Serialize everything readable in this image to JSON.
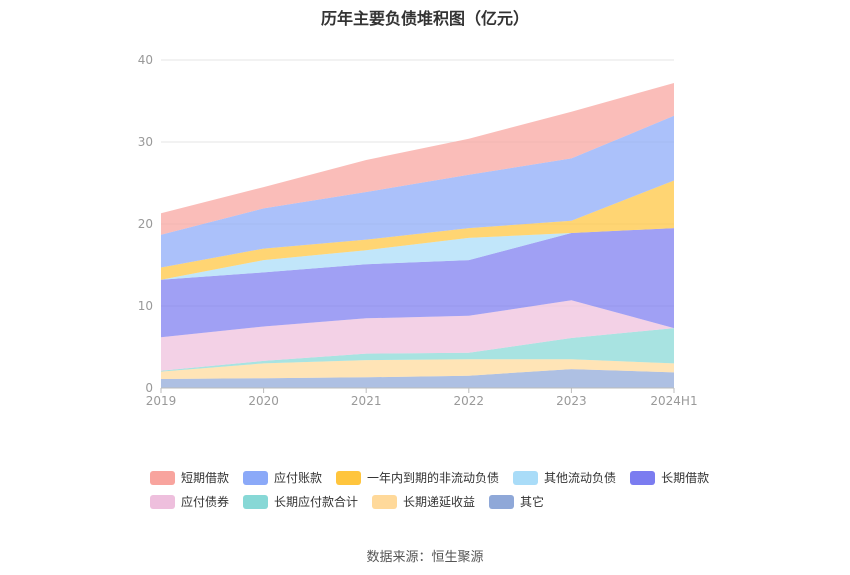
{
  "chart_data": {
    "type": "area",
    "stacked": true,
    "title": "历年主要负债堆积图（亿元）",
    "categories": [
      "2019",
      "2020",
      "2021",
      "2022",
      "2023",
      "2024H1"
    ],
    "ylim": [
      0,
      40
    ],
    "yticks": [
      0,
      10,
      20,
      30,
      40
    ],
    "grid": true,
    "legend_position": "bottom",
    "series": [
      {
        "name": "其它",
        "color": "#8fa8d8",
        "values": [
          1.1,
          1.2,
          1.3,
          1.5,
          2.3,
          1.9
        ]
      },
      {
        "name": "长期递延收益",
        "color": "#ffd99a",
        "values": [
          0.9,
          1.8,
          2.1,
          2.0,
          1.2,
          1.1
        ]
      },
      {
        "name": "长期应付款合计",
        "color": "#87d8d6",
        "values": [
          0.1,
          0.3,
          0.8,
          0.8,
          2.6,
          4.3
        ]
      },
      {
        "name": "应付债券",
        "color": "#eebfdd",
        "values": [
          4.1,
          4.2,
          4.3,
          4.5,
          4.6,
          0.0
        ]
      },
      {
        "name": "长期借款",
        "color": "#7b7cf0",
        "values": [
          7.0,
          6.6,
          6.6,
          6.8,
          8.2,
          12.2
        ]
      },
      {
        "name": "其他流动负债",
        "color": "#a9dcf8",
        "values": [
          0.0,
          1.5,
          1.7,
          2.7,
          0.0,
          0.0
        ]
      },
      {
        "name": "一年内到期的非流动负债",
        "color": "#ffc53d",
        "values": [
          1.5,
          1.4,
          1.3,
          1.2,
          1.5,
          5.8
        ]
      },
      {
        "name": "应付账款",
        "color": "#8ba9f8",
        "values": [
          4.0,
          4.9,
          5.8,
          6.5,
          7.6,
          7.9
        ]
      },
      {
        "name": "短期借款",
        "color": "#f8a49e",
        "values": [
          2.6,
          2.6,
          3.9,
          4.4,
          5.7,
          4.0
        ]
      }
    ]
  },
  "legend_order": [
    "短期借款",
    "应付账款",
    "一年内到期的非流动负债",
    "其他流动负债",
    "长期借款",
    "应付债券",
    "长期应付款合计",
    "长期递延收益",
    "其它"
  ],
  "source": "数据来源：恒生聚源"
}
